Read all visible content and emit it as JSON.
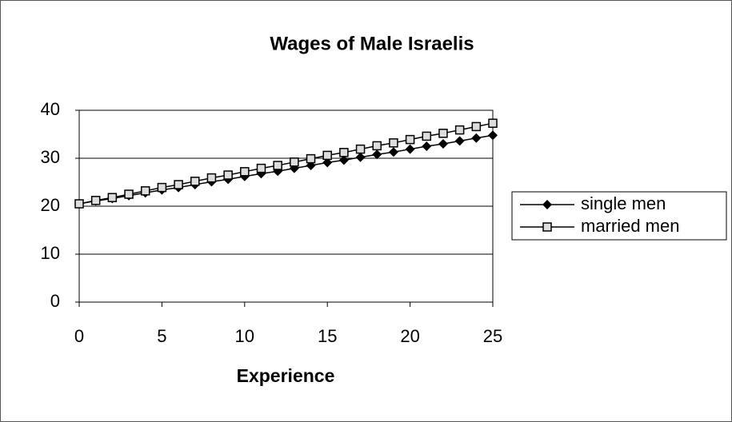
{
  "chart_data": {
    "type": "line",
    "title": "Wages of Male Israelis",
    "x_label": "Experience",
    "x": [
      0,
      1,
      2,
      3,
      4,
      5,
      6,
      7,
      8,
      9,
      10,
      11,
      12,
      13,
      14,
      15,
      16,
      17,
      18,
      19,
      20,
      21,
      22,
      23,
      24,
      25
    ],
    "series": [
      {
        "name": "single men",
        "color": "#000000",
        "marker": "diamond",
        "values": [
          20.5,
          21.1,
          21.6,
          22.2,
          22.8,
          23.4,
          23.9,
          24.5,
          25.1,
          25.6,
          26.2,
          26.8,
          27.3,
          27.9,
          28.5,
          29.1,
          29.6,
          30.2,
          30.8,
          31.3,
          31.9,
          32.5,
          33.0,
          33.6,
          34.2,
          34.8
        ]
      },
      {
        "name": "married men",
        "color": "#000000",
        "marker": "square",
        "values": [
          20.5,
          21.2,
          21.8,
          22.5,
          23.2,
          23.9,
          24.5,
          25.2,
          25.9,
          26.5,
          27.2,
          27.9,
          28.5,
          29.2,
          29.9,
          30.6,
          31.2,
          31.9,
          32.6,
          33.2,
          33.9,
          34.6,
          35.2,
          35.9,
          36.6,
          37.3
        ]
      }
    ],
    "xlim": [
      0,
      25
    ],
    "xticks": [
      0,
      5,
      10,
      15,
      20,
      25
    ],
    "ylim": [
      0,
      40
    ],
    "yticks": [
      0,
      10,
      20,
      30,
      40
    ],
    "grid": true,
    "legend": "right"
  }
}
